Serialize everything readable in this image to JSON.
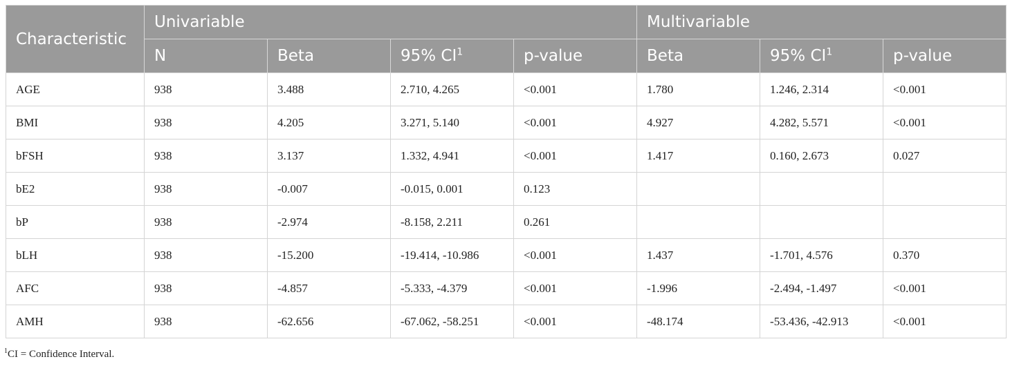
{
  "header": {
    "characteristic": "Characteristic",
    "univariable": "Univariable",
    "multivariable": "Multivariable",
    "n": "N",
    "beta": "Beta",
    "ci": "95% CI",
    "ci_sup": "1",
    "p": "p-value"
  },
  "rows": [
    {
      "char": "AGE",
      "n": "938",
      "ubeta": "3.488",
      "uci": "2.710, 4.265",
      "up": "<0.001",
      "mbeta": "1.780",
      "mci": "1.246, 2.314",
      "mp": "<0.001"
    },
    {
      "char": "BMI",
      "n": "938",
      "ubeta": "4.205",
      "uci": "3.271, 5.140",
      "up": "<0.001",
      "mbeta": "4.927",
      "mci": "4.282, 5.571",
      "mp": "<0.001"
    },
    {
      "char": "bFSH",
      "n": "938",
      "ubeta": "3.137",
      "uci": "1.332, 4.941",
      "up": "<0.001",
      "mbeta": "1.417",
      "mci": "0.160, 2.673",
      "mp": "0.027"
    },
    {
      "char": "bE2",
      "n": "938",
      "ubeta": "-0.007",
      "uci": "-0.015, 0.001",
      "up": "0.123",
      "mbeta": "",
      "mci": "",
      "mp": ""
    },
    {
      "char": "bP",
      "n": "938",
      "ubeta": "-2.974",
      "uci": "-8.158, 2.211",
      "up": "0.261",
      "mbeta": "",
      "mci": "",
      "mp": ""
    },
    {
      "char": "bLH",
      "n": "938",
      "ubeta": "-15.200",
      "uci": "-19.414, -10.986",
      "up": "<0.001",
      "mbeta": "1.437",
      "mci": "-1.701, 4.576",
      "mp": "0.370"
    },
    {
      "char": "AFC",
      "n": "938",
      "ubeta": "-4.857",
      "uci": "-5.333, -4.379",
      "up": "<0.001",
      "mbeta": "-1.996",
      "mci": "-2.494, -1.497",
      "mp": "<0.001"
    },
    {
      "char": "AMH",
      "n": "938",
      "ubeta": "-62.656",
      "uci": "-67.062, -58.251",
      "up": "<0.001",
      "mbeta": "-48.174",
      "mci": "-53.436, -42.913",
      "mp": "<0.001"
    }
  ],
  "footnote": {
    "sup": "1",
    "text": "CI = Confidence Interval."
  }
}
